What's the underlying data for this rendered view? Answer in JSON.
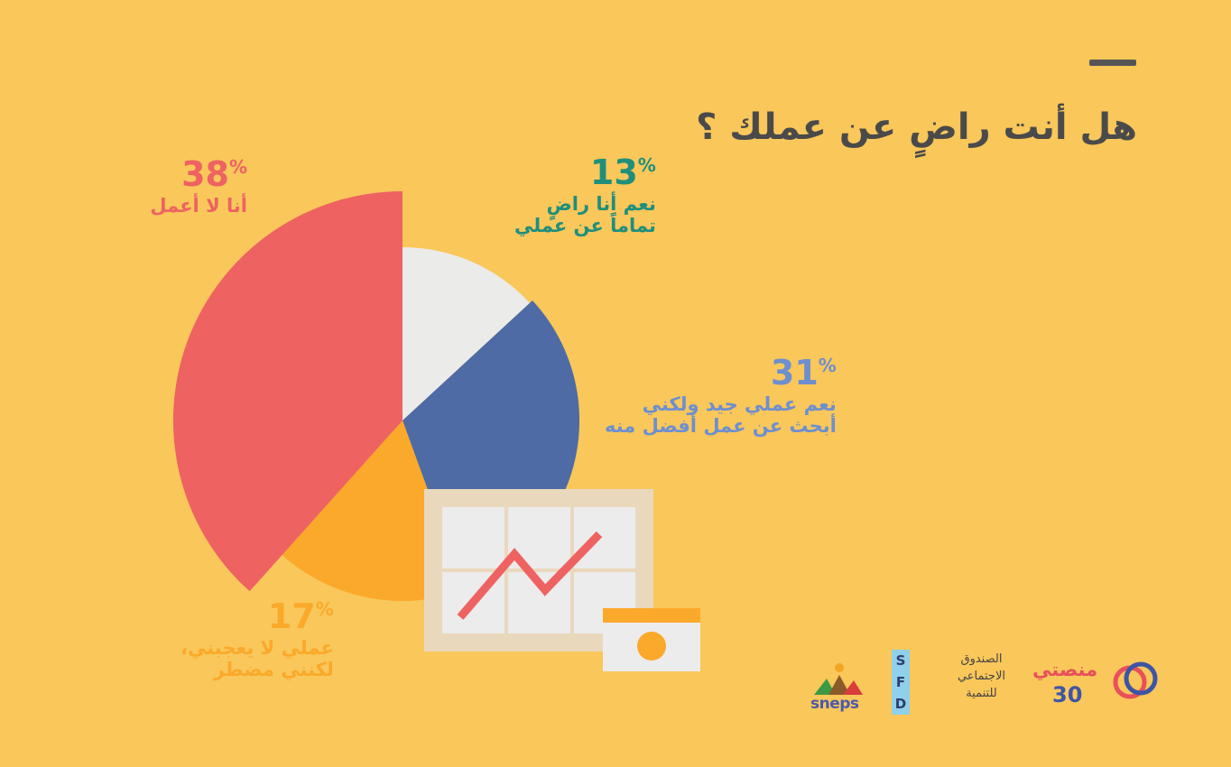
{
  "title": "هل أنت راضٍ عن عملك ؟",
  "chart_data": {
    "type": "pie",
    "slices": [
      {
        "label": "أنا لا أعمل",
        "value": 38,
        "color": "#ee6261"
      },
      {
        "label": "نعم أنا راضٍ\nتماماً عن عملي",
        "value": 13,
        "color": "#ebebea",
        "label_color": "#1f8f7c"
      },
      {
        "label": "نعم عملي جيد ولكني\nأبحث عن عمل أفضل منه",
        "value": 31,
        "color": "#4e6ba5",
        "label_color": "#6e8fcf"
      },
      {
        "label": "عملي لا يعجبني،\nلكنني مضطر",
        "value": 17,
        "color": "#fba92a"
      }
    ],
    "percent_sign": "%"
  },
  "logos": {
    "sneps": "sneps",
    "sfd_letters": [
      "S",
      "F",
      "D"
    ],
    "sfd_text": [
      "الصندوق",
      "الاجتماعي",
      "للتنمية"
    ],
    "manasati_word": "منصتي",
    "manasati_num": "30"
  }
}
